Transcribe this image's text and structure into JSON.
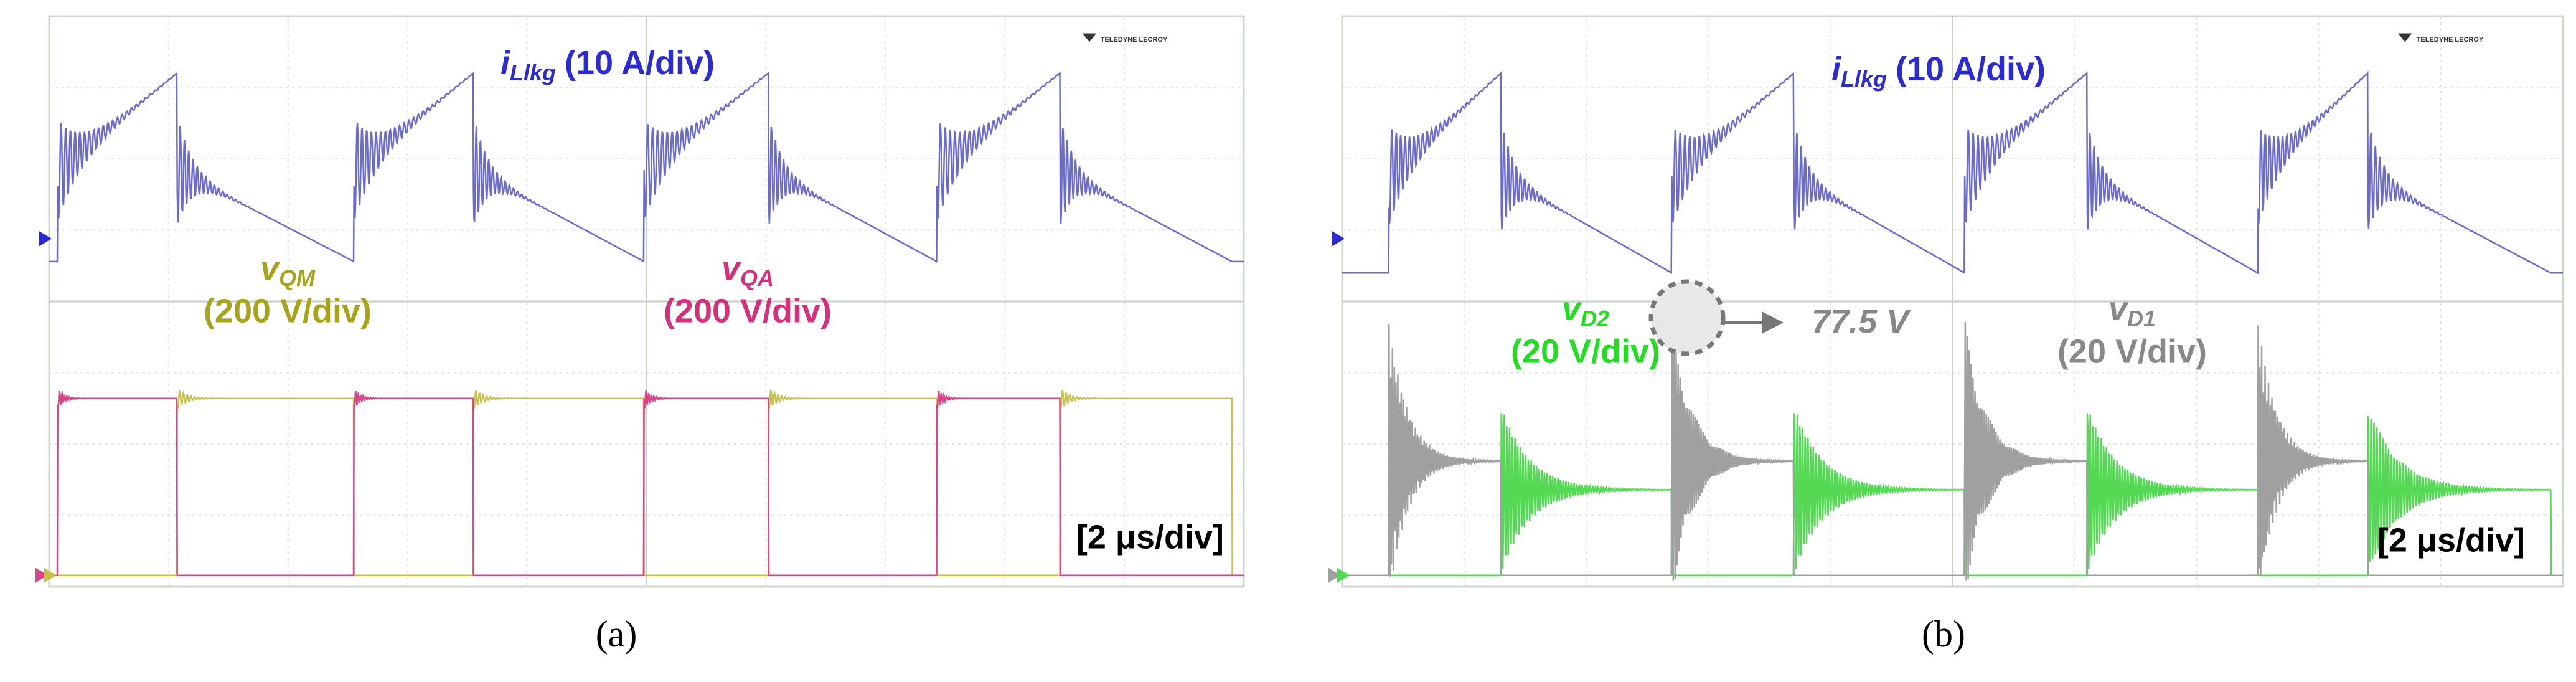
{
  "panels": [
    {
      "caption": "(a)",
      "logo": "TELEDYNE LECROY",
      "time_scale": "[2 μs/div]",
      "labels": [
        {
          "symbol": "i",
          "subscript": "Llkg",
          "scale": "(10 A/div)"
        },
        {
          "symbol": "v",
          "subscript": "QM",
          "scale": "(200 V/div)"
        },
        {
          "symbol": "v",
          "subscript": "QA",
          "scale": "(200 V/div)"
        }
      ]
    },
    {
      "caption": "(b)",
      "logo": "TELEDYNE LECROY",
      "time_scale": "[2 μs/div]",
      "annotation": "77.5 V",
      "labels": [
        {
          "symbol": "i",
          "subscript": "Llkg",
          "scale": "(10 A/div)"
        },
        {
          "symbol": "v",
          "subscript": "D2",
          "scale": "(20 V/div)"
        },
        {
          "symbol": "v",
          "subscript": "D1",
          "scale": "(20 V/div)"
        }
      ]
    }
  ]
}
